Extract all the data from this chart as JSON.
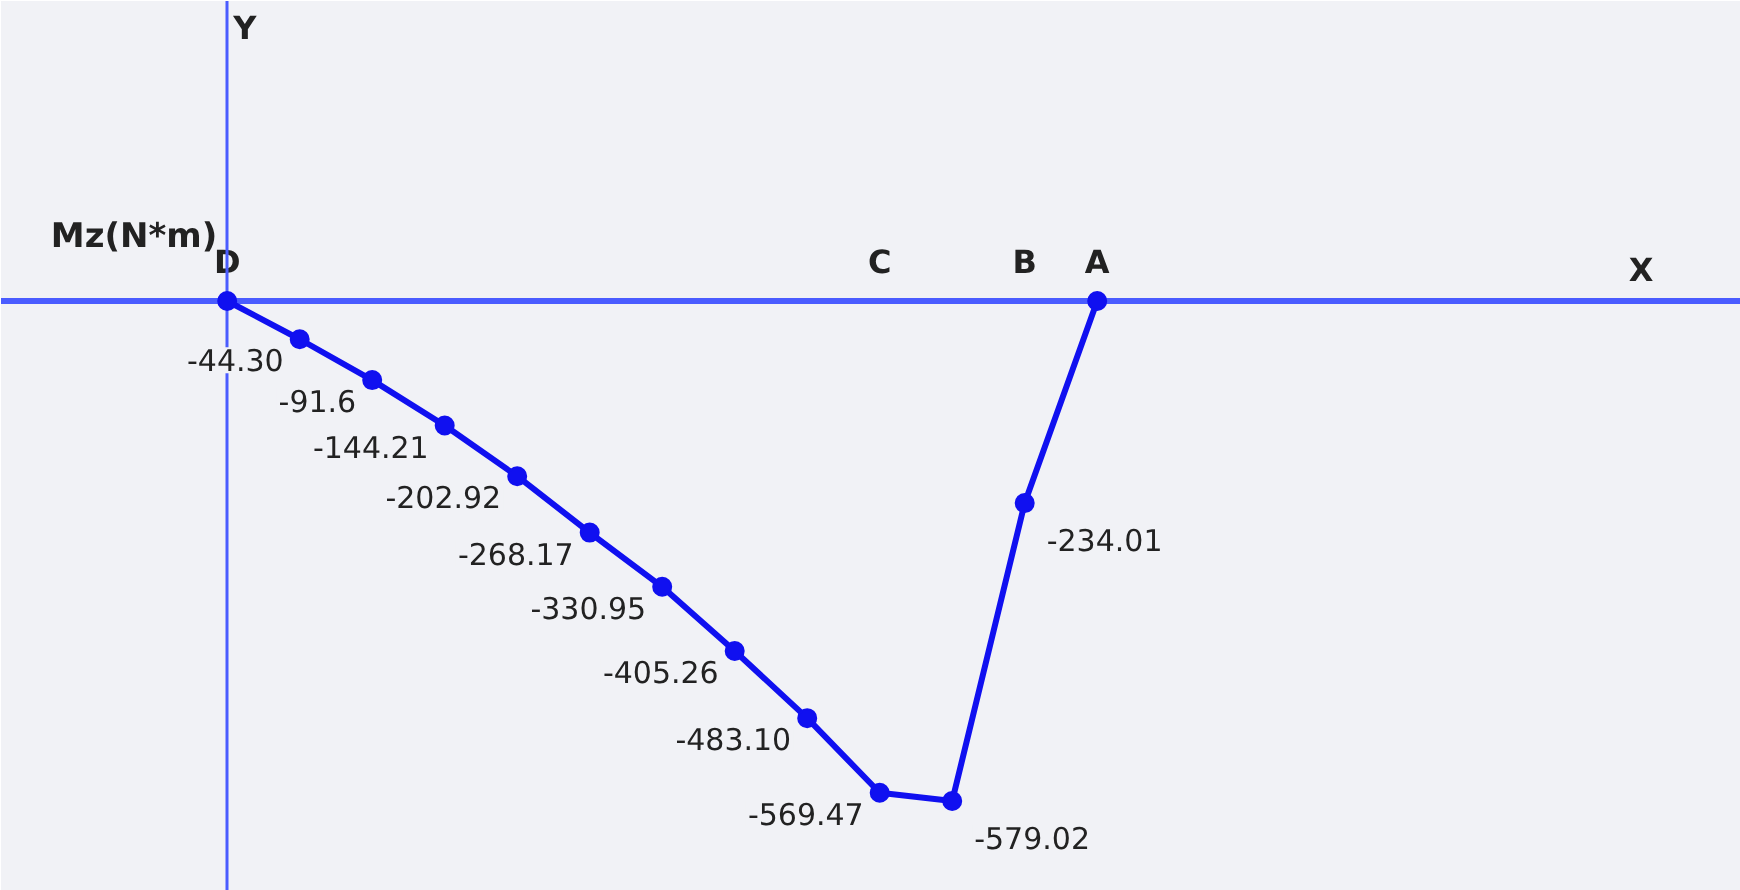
{
  "chart_data": {
    "type": "line",
    "title": "Mz(N*m)",
    "categories": [
      "D",
      null,
      null,
      null,
      null,
      null,
      null,
      null,
      null,
      "C",
      null,
      "B",
      "A"
    ],
    "values": [
      0,
      -44.3,
      -91.6,
      -144.21,
      -202.92,
      -268.17,
      -330.95,
      -405.26,
      -483.1,
      -569.47,
      -579.02,
      -234.01,
      0
    ],
    "value_labels": [
      null,
      "-44.30",
      "-91.6",
      "-144.21",
      "-202.92",
      "-268.17",
      "-330.95",
      "-405.26",
      "-483.10",
      "-569.47",
      "-579.02",
      "-234.01",
      null
    ],
    "color": "#1010f0",
    "marker": "circle",
    "annotations": [
      "Y",
      "X"
    ]
  }
}
